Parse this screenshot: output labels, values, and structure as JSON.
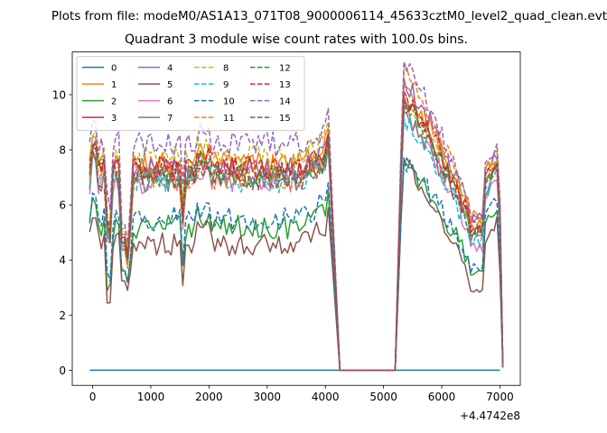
{
  "figure": {
    "suptitle": "Plots from file: modeM0/AS1A13_071T08_9000006114_45633cztM0_level2_quad_clean.evt",
    "title": "Quadrant 3 module wise count rates with 100.0s bins."
  },
  "chart_data": {
    "type": "line",
    "title": "Quadrant 3 module wise count rates with 100.0s bins.",
    "xlabel": "",
    "ylabel": "",
    "x_offset_label": "+4.4742e8",
    "xlim": [
      -350,
      7350
    ],
    "ylim": [
      -0.55,
      11.55
    ],
    "xticks": [
      0,
      1000,
      2000,
      3000,
      4000,
      5000,
      6000,
      7000
    ],
    "xtick_labels": [
      "0",
      "1000",
      "2000",
      "3000",
      "4000",
      "5000",
      "6000",
      "7000"
    ],
    "yticks": [
      0,
      2,
      4,
      6,
      8,
      10
    ],
    "ytick_labels": [
      "0",
      "2",
      "4",
      "6",
      "8",
      "10"
    ],
    "grid": false,
    "legend_position": "upper-left",
    "legend_columns": 4,
    "gap_x": [
      4200,
      5200
    ],
    "series": [
      {
        "name": "0",
        "color": "#1f77b4",
        "dash": "solid"
      },
      {
        "name": "1",
        "color": "#ff7f0e",
        "dash": "solid"
      },
      {
        "name": "2",
        "color": "#2ca02c",
        "dash": "solid"
      },
      {
        "name": "3",
        "color": "#d62728",
        "dash": "solid"
      },
      {
        "name": "4",
        "color": "#9467bd",
        "dash": "solid"
      },
      {
        "name": "5",
        "color": "#8c564b",
        "dash": "solid"
      },
      {
        "name": "6",
        "color": "#e377c2",
        "dash": "solid"
      },
      {
        "name": "7",
        "color": "#7f7f7f",
        "dash": "solid"
      },
      {
        "name": "8",
        "color": "#bcbd22",
        "dash": "dashed"
      },
      {
        "name": "9",
        "color": "#17becf",
        "dash": "dashed"
      },
      {
        "name": "10",
        "color": "#1f77b4",
        "dash": "dashed"
      },
      {
        "name": "11",
        "color": "#ff7f0e",
        "dash": "dashed"
      },
      {
        "name": "12",
        "color": "#2ca02c",
        "dash": "dashed"
      },
      {
        "name": "13",
        "color": "#d62728",
        "dash": "dashed"
      },
      {
        "name": "14",
        "color": "#9467bd",
        "dash": "dashed"
      },
      {
        "name": "15",
        "color": "#8c564b",
        "dash": "dashed"
      }
    ]
  }
}
